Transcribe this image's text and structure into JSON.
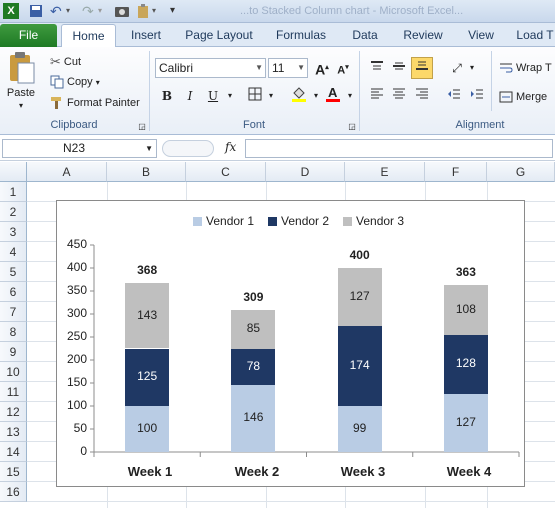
{
  "qat": {
    "icons": [
      "excel-icon",
      "save-icon",
      "undo-icon",
      "redo-icon",
      "camera-icon",
      "paste-special-icon",
      "customize-icon"
    ]
  },
  "title_partial": "...to Stacked Column chart - Microsoft Excel...",
  "tabs": {
    "file": "File",
    "items": [
      "Home",
      "Insert",
      "Page Layout",
      "Formulas",
      "Data",
      "Review",
      "View",
      "Load T"
    ]
  },
  "ribbon": {
    "clipboard": {
      "paste": "Paste",
      "cut": "Cut",
      "copy": "Copy",
      "format_painter": "Format Painter",
      "label": "Clipboard"
    },
    "font": {
      "name": "Calibri",
      "size": "11",
      "bold": "B",
      "italic": "I",
      "underline": "U",
      "label": "Font",
      "fill_color": "#ffff00",
      "font_color": "#ff0000"
    },
    "alignment": {
      "wrap": "Wrap T",
      "merge": "Merge",
      "label": "Alignment"
    }
  },
  "formula_bar": {
    "name_box": "N23",
    "fx": "fx",
    "formula": ""
  },
  "grid": {
    "columns": [
      "A",
      "B",
      "C",
      "D",
      "E",
      "F",
      "G"
    ],
    "rows": [
      "1",
      "2",
      "3",
      "4",
      "5",
      "6",
      "7",
      "8",
      "9",
      "10",
      "11",
      "12",
      "13",
      "14",
      "15",
      "16"
    ]
  },
  "chart_data": {
    "type": "bar",
    "stacked": true,
    "categories": [
      "Week 1",
      "Week 2",
      "Week 3",
      "Week 4"
    ],
    "series": [
      {
        "name": "Vendor 1",
        "values": [
          100,
          146,
          99,
          127
        ],
        "color": "#b9cce4"
      },
      {
        "name": "Vendor 2",
        "values": [
          125,
          78,
          174,
          128
        ],
        "color": "#1f3864"
      },
      {
        "name": "Vendor 3",
        "values": [
          143,
          85,
          127,
          108
        ],
        "color": "#bfbfbf"
      }
    ],
    "totals": [
      368,
      309,
      400,
      363
    ],
    "ylim": [
      0,
      450
    ],
    "yticks": [
      "0",
      "50",
      "100",
      "150",
      "200",
      "250",
      "300",
      "350",
      "400",
      "450"
    ],
    "legend": "top",
    "title": "",
    "xlabel": "",
    "ylabel": ""
  }
}
